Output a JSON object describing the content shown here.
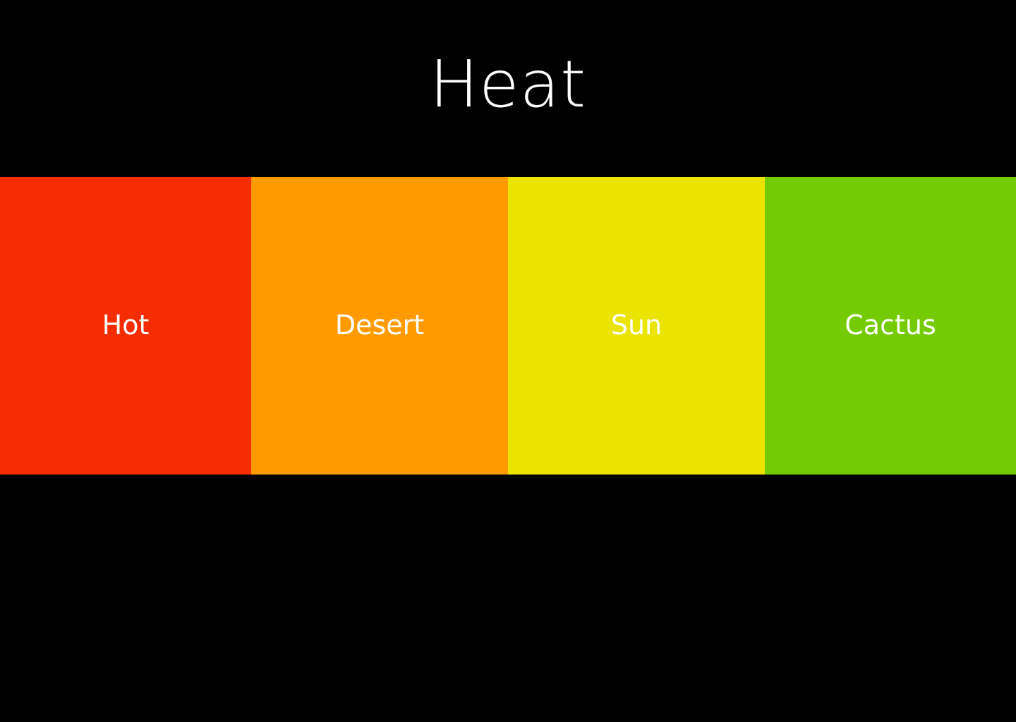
{
  "palette": {
    "title": "Heat",
    "background_color": "#000000",
    "text_color": "#ffffff",
    "swatches": [
      {
        "label": "Hot",
        "color": "#f52d00"
      },
      {
        "label": "Desert",
        "color": "#ff9a00"
      },
      {
        "label": "Sun",
        "color": "#ebe300"
      },
      {
        "label": "Cactus",
        "color": "#75cb03"
      }
    ]
  }
}
